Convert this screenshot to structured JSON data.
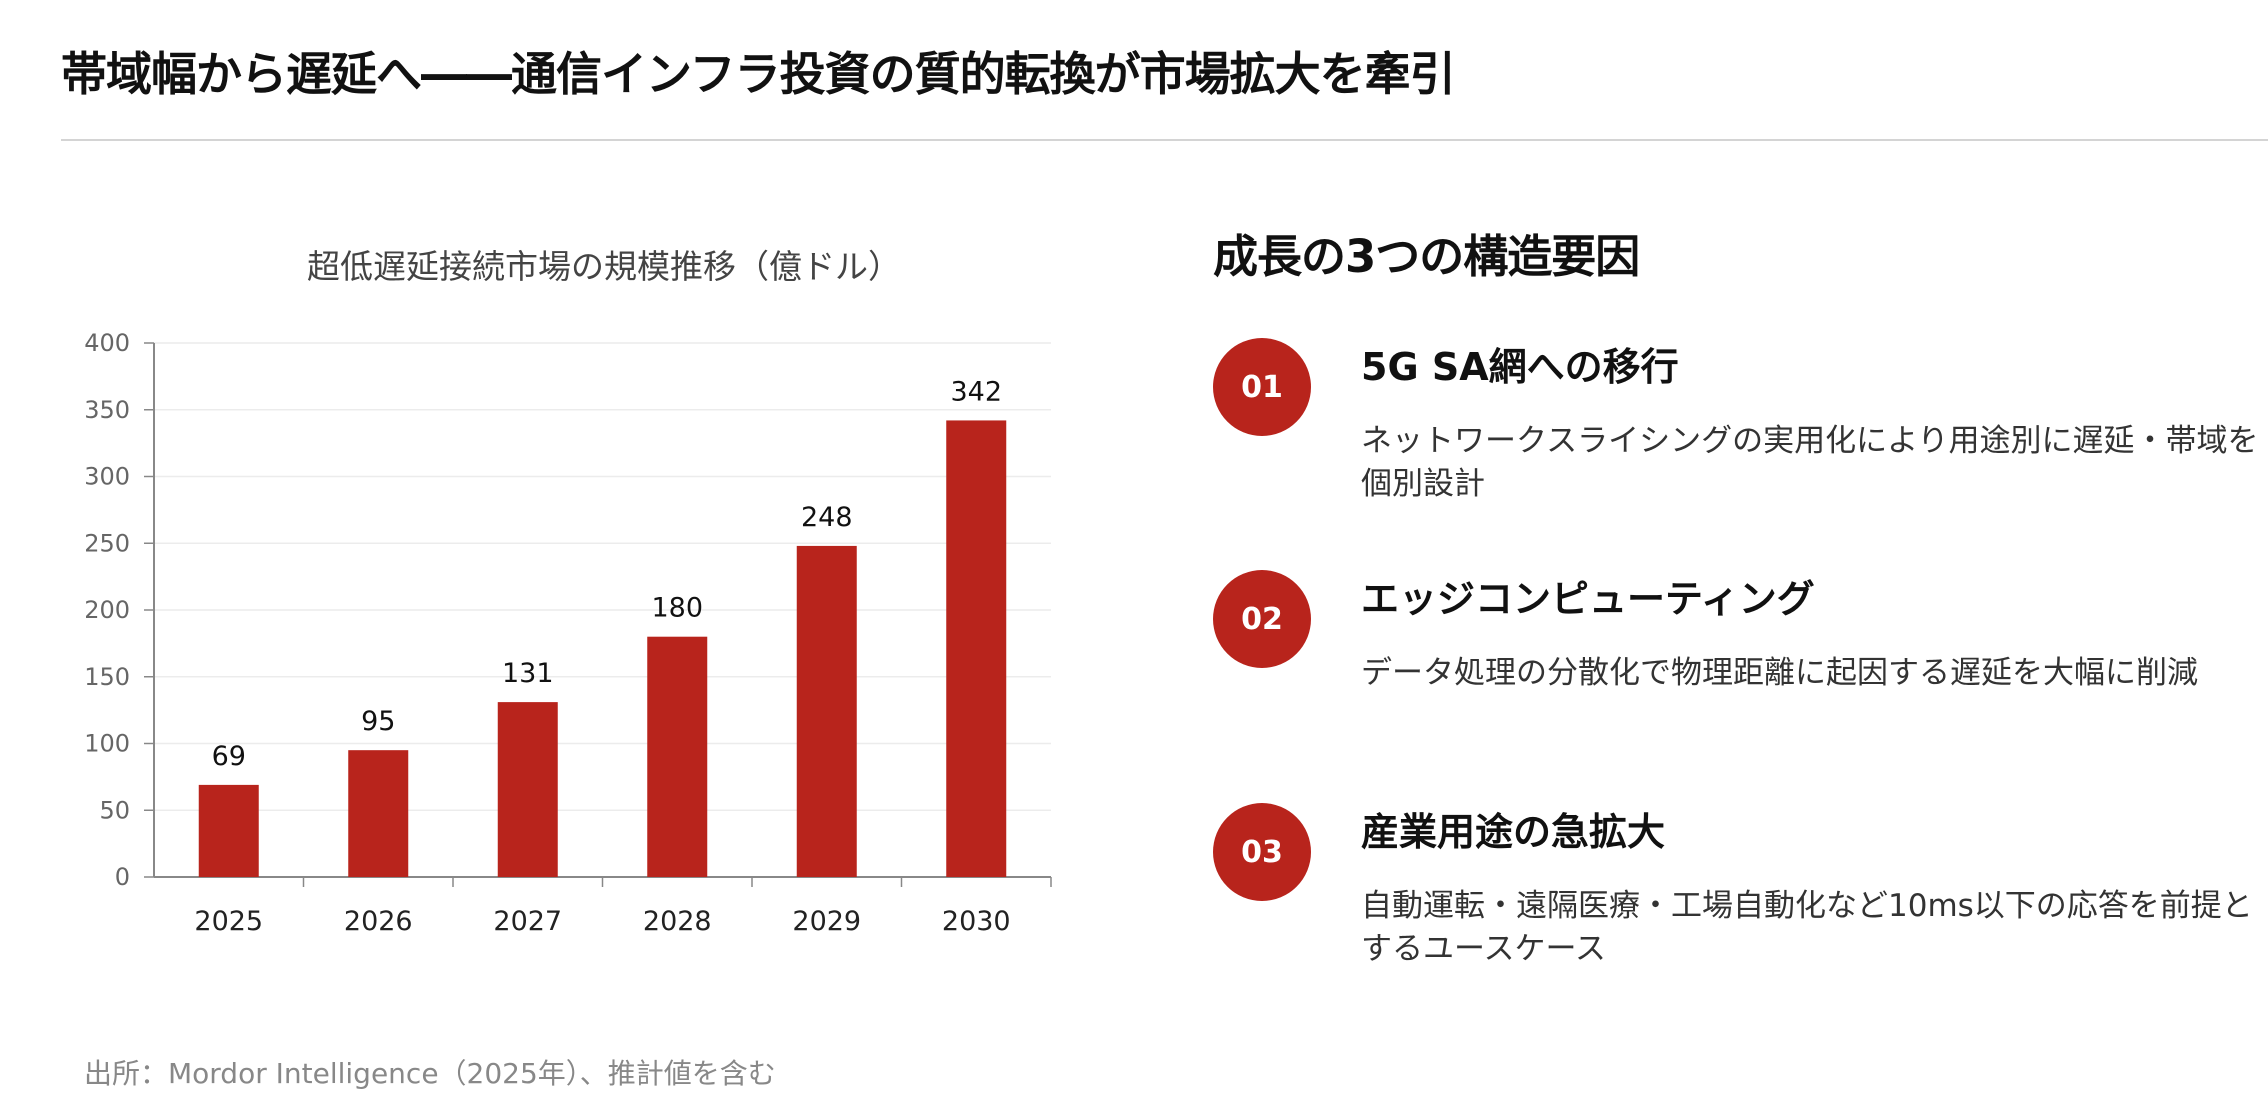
{
  "title": "帯域幅から遅延へ――通信インフラ投資の質的転換が市場拡大を牽引",
  "accent_color": "#b8241c",
  "chart_data": {
    "type": "bar",
    "title": "超低遅延接続市場の規模推移（億ドル）",
    "categories": [
      "2025",
      "2026",
      "2027",
      "2028",
      "2029",
      "2030"
    ],
    "values": [
      69,
      95,
      131,
      180,
      248,
      342
    ],
    "ylim": [
      0,
      400
    ],
    "yticks": [
      0,
      50,
      100,
      150,
      200,
      250,
      300,
      350,
      400
    ],
    "grid": true,
    "data_labels": true,
    "bar_color": "#b8241c"
  },
  "footnote": "出所：Mordor Intelligence（2025年）、推計値を含む",
  "factors": {
    "heading": "成長の3つの構造要因",
    "items": [
      {
        "number": "01",
        "title": "5G SA網への移行",
        "desc": "ネットワークスライシングの実用化により用途別に遅延・帯域を個別設計"
      },
      {
        "number": "02",
        "title": "エッジコンピューティング",
        "desc": "データ処理の分散化で物理距離に起因する遅延を大幅に削減"
      },
      {
        "number": "03",
        "title": "産業用途の急拡大",
        "desc": "自動運転・遠隔医療・工場自動化など10ms以下の応答を前提とするユースケース"
      }
    ]
  }
}
